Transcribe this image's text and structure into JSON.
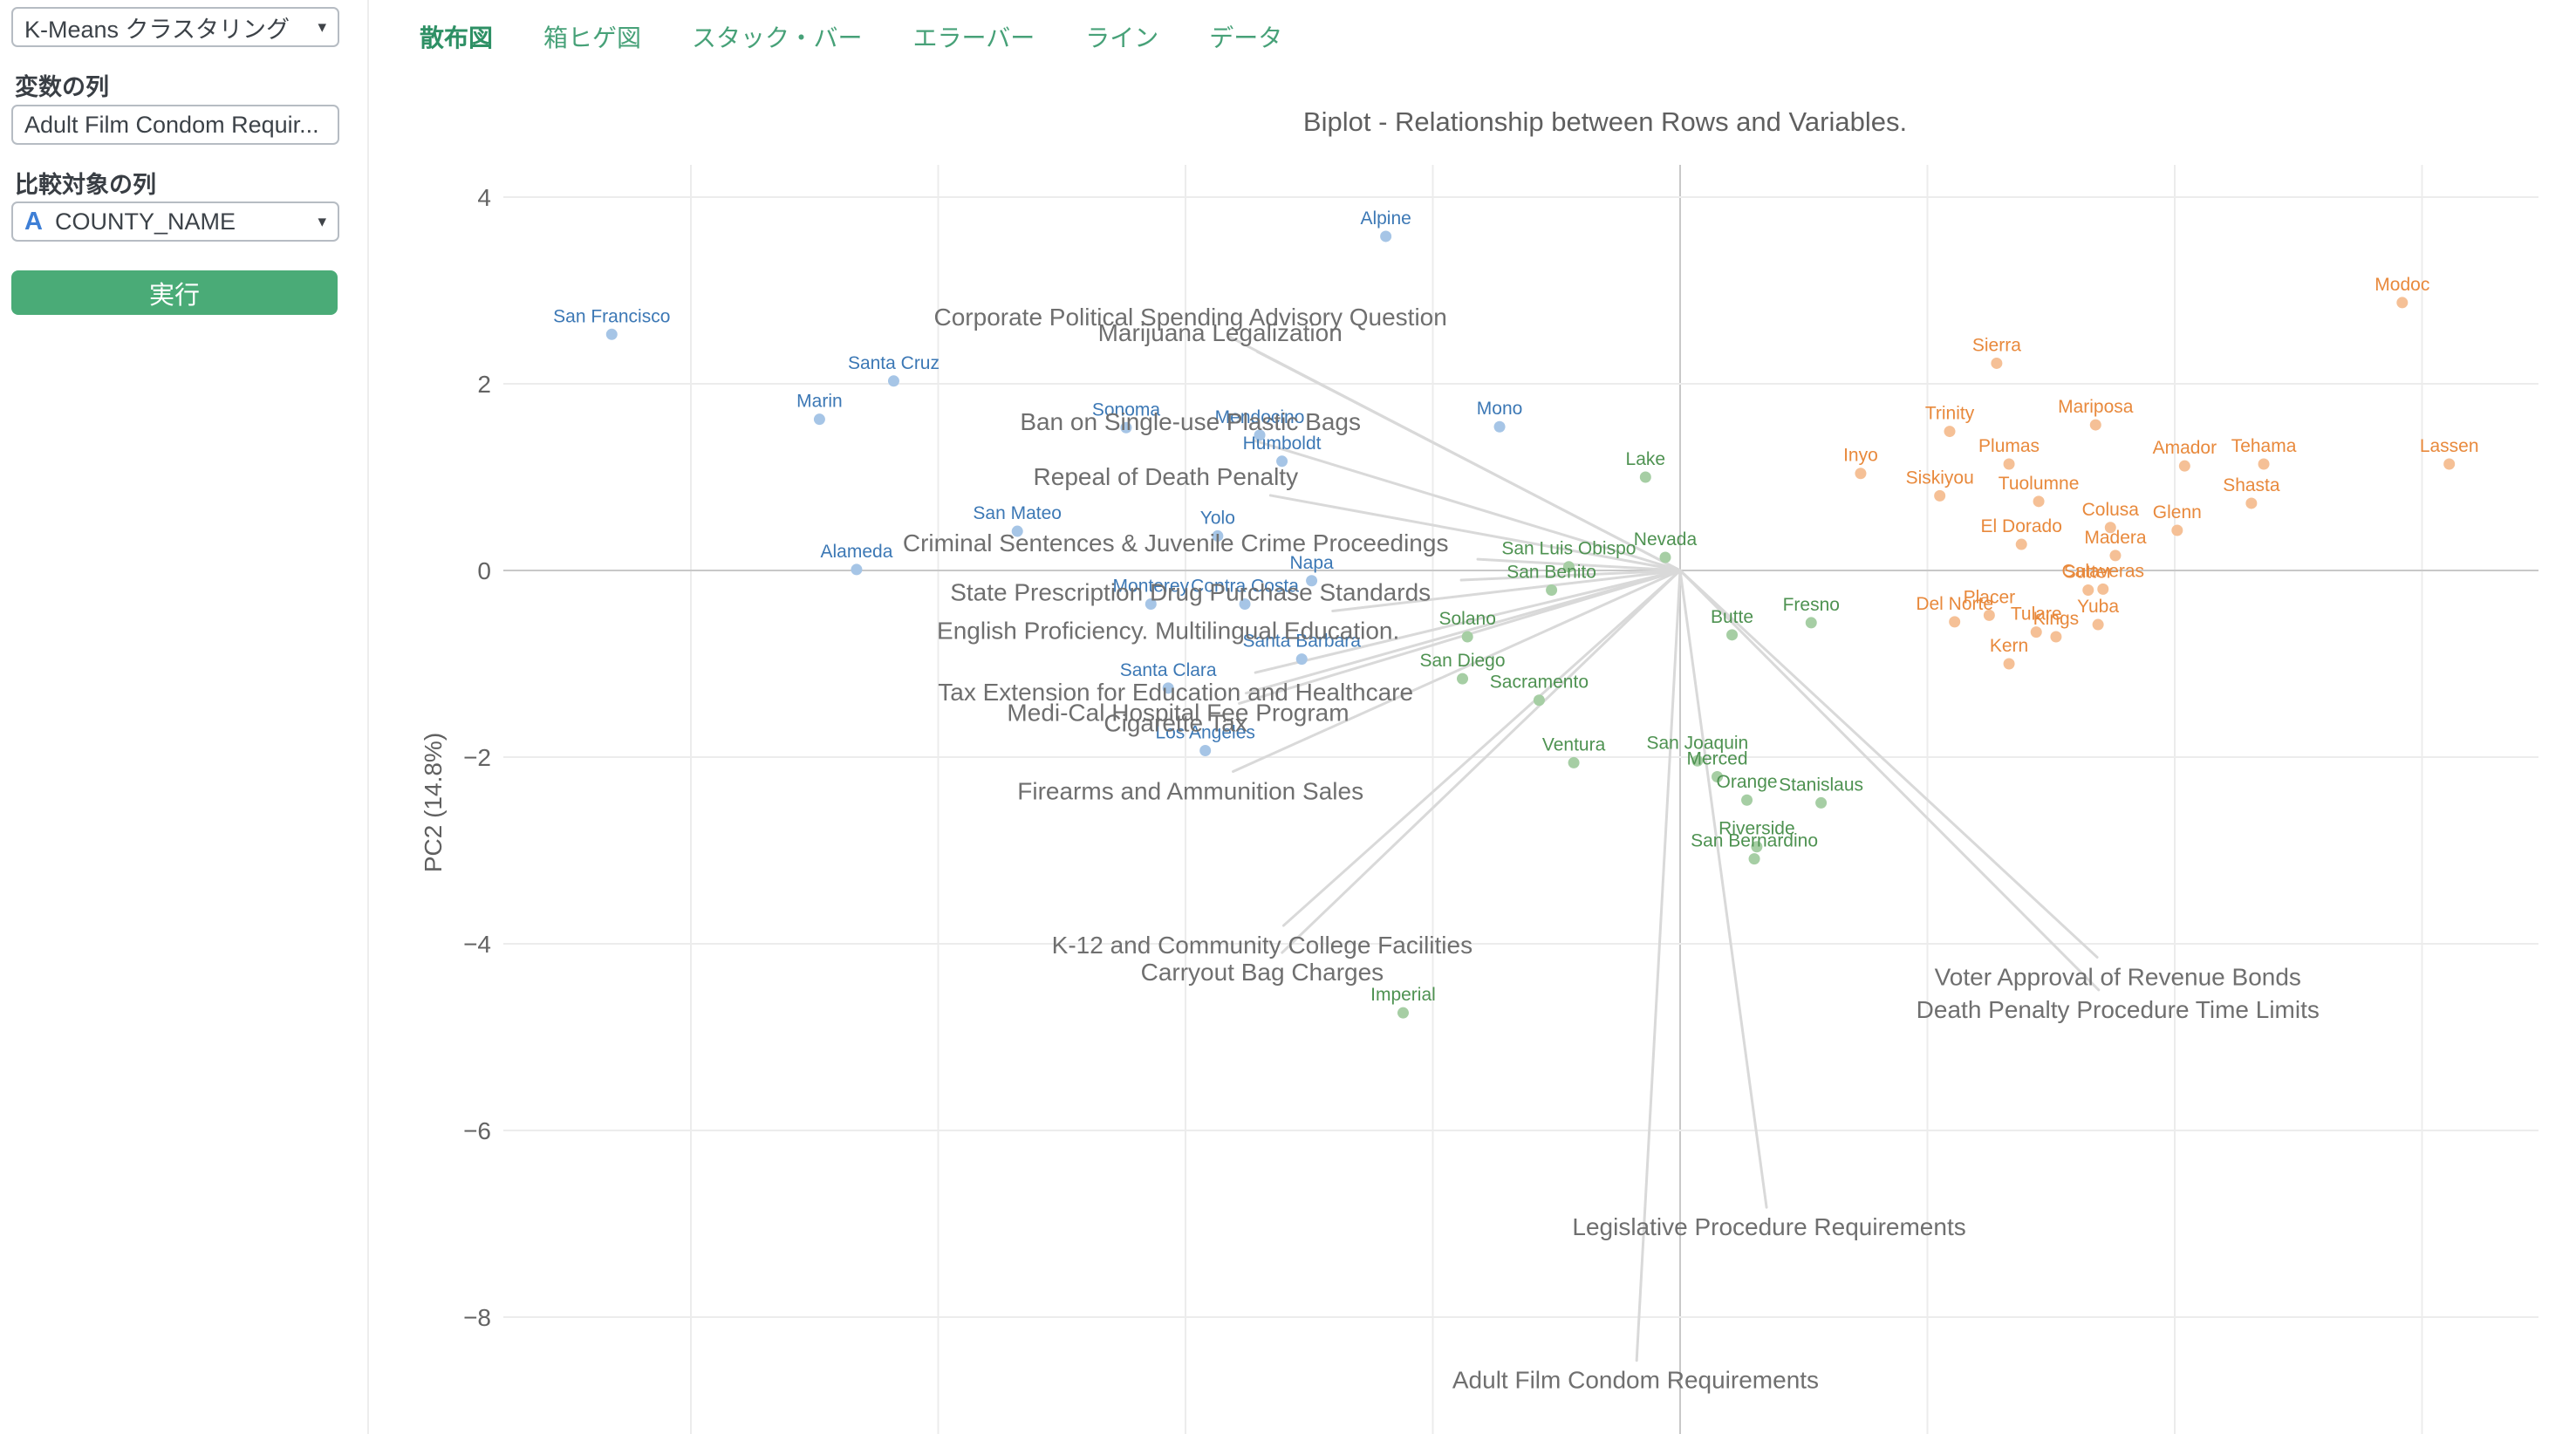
{
  "sidebar": {
    "method_value": "K-Means クラスタリング",
    "variable_label": "変数の列",
    "variable_value": "Adult Film Condom Requir...",
    "target_label": "比較対象の列",
    "target_icon": "A",
    "target_value": "COUNTY_NAME",
    "run_label": "実行"
  },
  "tabs": [
    {
      "label": "散布図",
      "active": true
    },
    {
      "label": "箱ヒゲ図",
      "active": false
    },
    {
      "label": "スタック・バー",
      "active": false
    },
    {
      "label": "エラーバー",
      "active": false
    },
    {
      "label": "ライン",
      "active": false
    },
    {
      "label": "データ",
      "active": false
    }
  ],
  "colors": {
    "accent_green": "#4aab77",
    "tab_green": "#47a178",
    "tab_active_green": "#2e9065",
    "blue_dot": "#a6c5e6",
    "blue_label": "#3c78b5",
    "green_dot": "#a6cea4",
    "green_label": "#4e9251",
    "orange_dot": "#f5c096",
    "orange_label": "#e8893c",
    "variable_label": "#6f6f6f",
    "grid": "#ececec",
    "zero_line": "#c8c8c8",
    "arrow": "#d9d9d9",
    "tick_label": "#636363"
  },
  "chart_data": {
    "type": "scatter",
    "title": "Biplot - Relationship between Rows and Variables.",
    "xlabel": "",
    "ylabel": "PC2 (14.8%)",
    "yticks": [
      4,
      2,
      0,
      -2,
      -4,
      -6,
      -8
    ],
    "x_gridlines": [
      -4,
      -3,
      -2,
      -1,
      0,
      1,
      2,
      3
    ],
    "xlim": [
      -4.76,
      3.47
    ],
    "ylim": [
      -9.25,
      4.35
    ],
    "grid": true,
    "legend": "none",
    "origin": {
      "x": 0,
      "y": 0
    },
    "points": [
      {
        "name": "Alpine",
        "cluster": "blue",
        "x": -1.19,
        "y": 3.58
      },
      {
        "name": "San Francisco",
        "cluster": "blue",
        "x": -4.32,
        "y": 2.53
      },
      {
        "name": "Santa Cruz",
        "cluster": "blue",
        "x": -3.18,
        "y": 2.03
      },
      {
        "name": "Marin",
        "cluster": "blue",
        "x": -3.48,
        "y": 1.62
      },
      {
        "name": "Sonoma",
        "cluster": "blue",
        "x": -2.24,
        "y": 1.53
      },
      {
        "name": "Mendocino",
        "cluster": "blue",
        "x": -1.7,
        "y": 1.45
      },
      {
        "name": "Humboldt",
        "cluster": "blue",
        "x": -1.61,
        "y": 1.17
      },
      {
        "name": "Mono",
        "cluster": "blue",
        "x": -0.73,
        "y": 1.54
      },
      {
        "name": "San Mateo",
        "cluster": "blue",
        "x": -2.68,
        "y": 0.42
      },
      {
        "name": "Yolo",
        "cluster": "blue",
        "x": -1.87,
        "y": 0.37
      },
      {
        "name": "Alameda",
        "cluster": "blue",
        "x": -3.33,
        "y": 0.01
      },
      {
        "name": "Napa",
        "cluster": "blue",
        "x": -1.49,
        "y": -0.11
      },
      {
        "name": "Monterey",
        "cluster": "blue",
        "x": -2.14,
        "y": -0.36
      },
      {
        "name": "Contra Costa",
        "cluster": "blue",
        "x": -1.76,
        "y": -0.36
      },
      {
        "name": "Santa Barbara",
        "cluster": "blue",
        "x": -1.53,
        "y": -0.95
      },
      {
        "name": "Santa Clara",
        "cluster": "blue",
        "x": -2.07,
        "y": -1.26
      },
      {
        "name": "Los Angeles",
        "cluster": "blue",
        "x": -1.92,
        "y": -1.93
      },
      {
        "name": "Lake",
        "cluster": "green",
        "x": -0.14,
        "y": 1.0
      },
      {
        "name": "Nevada",
        "cluster": "green",
        "x": -0.06,
        "y": 0.14
      },
      {
        "name": "San Luis Obispo",
        "cluster": "green",
        "x": -0.45,
        "y": 0.04
      },
      {
        "name": "San Benito",
        "cluster": "green",
        "x": -0.52,
        "y": -0.21
      },
      {
        "name": "Solano",
        "cluster": "green",
        "x": -0.86,
        "y": -0.71
      },
      {
        "name": "San Diego",
        "cluster": "green",
        "x": -0.88,
        "y": -1.16
      },
      {
        "name": "Sacramento",
        "cluster": "green",
        "x": -0.57,
        "y": -1.39
      },
      {
        "name": "Butte",
        "cluster": "green",
        "x": 0.21,
        "y": -0.69
      },
      {
        "name": "Fresno",
        "cluster": "green",
        "x": 0.53,
        "y": -0.56
      },
      {
        "name": "Ventura",
        "cluster": "green",
        "x": -0.43,
        "y": -2.06
      },
      {
        "name": "San Joaquin",
        "cluster": "green",
        "x": 0.07,
        "y": -2.04
      },
      {
        "name": "Merced",
        "cluster": "green",
        "x": 0.15,
        "y": -2.21
      },
      {
        "name": "Orange",
        "cluster": "green",
        "x": 0.27,
        "y": -2.46
      },
      {
        "name": "Stanislaus",
        "cluster": "green",
        "x": 0.57,
        "y": -2.49
      },
      {
        "name": "Riverside",
        "cluster": "green",
        "x": 0.31,
        "y": -2.96
      },
      {
        "name": "San Bernardino",
        "cluster": "green",
        "x": 0.3,
        "y": -3.09
      },
      {
        "name": "Imperial",
        "cluster": "green",
        "x": -1.12,
        "y": -4.74
      },
      {
        "name": "Modoc",
        "cluster": "orange",
        "x": 2.92,
        "y": 2.87
      },
      {
        "name": "Sierra",
        "cluster": "orange",
        "x": 1.28,
        "y": 2.22
      },
      {
        "name": "Mariposa",
        "cluster": "orange",
        "x": 1.68,
        "y": 1.56
      },
      {
        "name": "Trinity",
        "cluster": "orange",
        "x": 1.09,
        "y": 1.49
      },
      {
        "name": "Plumas",
        "cluster": "orange",
        "x": 1.33,
        "y": 1.14
      },
      {
        "name": "Amador",
        "cluster": "orange",
        "x": 2.04,
        "y": 1.12
      },
      {
        "name": "Tehama",
        "cluster": "orange",
        "x": 2.36,
        "y": 1.14
      },
      {
        "name": "Lassen",
        "cluster": "orange",
        "x": 3.11,
        "y": 1.14
      },
      {
        "name": "Siskiyou",
        "cluster": "orange",
        "x": 1.05,
        "y": 0.8
      },
      {
        "name": "Tuolumne",
        "cluster": "orange",
        "x": 1.45,
        "y": 0.74
      },
      {
        "name": "Shasta",
        "cluster": "orange",
        "x": 2.31,
        "y": 0.72
      },
      {
        "name": "Colusa",
        "cluster": "orange",
        "x": 1.74,
        "y": 0.46
      },
      {
        "name": "Glenn",
        "cluster": "orange",
        "x": 2.01,
        "y": 0.43
      },
      {
        "name": "El Dorado",
        "cluster": "orange",
        "x": 1.38,
        "y": 0.28
      },
      {
        "name": "Madera",
        "cluster": "orange",
        "x": 1.76,
        "y": 0.16
      },
      {
        "name": "Sutter",
        "cluster": "orange",
        "x": 1.65,
        "y": -0.21
      },
      {
        "name": "Calaveras",
        "cluster": "orange",
        "x": 1.71,
        "y": -0.2
      },
      {
        "name": "Placer",
        "cluster": "orange",
        "x": 1.25,
        "y": -0.48
      },
      {
        "name": "Del Norte",
        "cluster": "orange",
        "x": 1.11,
        "y": -0.55
      },
      {
        "name": "Yuba",
        "cluster": "orange",
        "x": 1.69,
        "y": -0.58
      },
      {
        "name": "Tulare",
        "cluster": "orange",
        "x": 1.44,
        "y": -0.66
      },
      {
        "name": "Kings",
        "cluster": "orange",
        "x": 1.52,
        "y": -0.71
      },
      {
        "name": "Kern",
        "cluster": "orange",
        "x": 1.33,
        "y": -1.0
      },
      {
        "name": "Inyo",
        "cluster": "orange",
        "x": 0.73,
        "y": 1.04
      }
    ],
    "variables": [
      {
        "name": "Corporate Political Spending Advisory Question",
        "x": -1.98,
        "y": 2.72
      },
      {
        "name": "Marijuana Legalization",
        "x": -1.86,
        "y": 2.55
      },
      {
        "name": "Ban on Single-use Plastic Bags",
        "x": -1.98,
        "y": 1.6
      },
      {
        "name": "Repeal of Death Penalty",
        "x": -2.08,
        "y": 1.01
      },
      {
        "name": "Criminal Sentences & Juvenile Crime Proceedings",
        "x": -2.04,
        "y": 0.3
      },
      {
        "name": "State Prescription Drug Purchase Standards",
        "x": -1.98,
        "y": -0.23
      },
      {
        "name": "English Proficiency. Multilingual Education.",
        "x": -2.07,
        "y": -0.64
      },
      {
        "name": "Tax Extension for Education and Healthcare",
        "x": -2.04,
        "y": -1.3
      },
      {
        "name": "Medi-Cal Hospital Fee Program",
        "x": -2.03,
        "y": -1.52
      },
      {
        "name": "Cigarette Tax",
        "x": -2.04,
        "y": -1.63
      },
      {
        "name": "Firearms and Ammunition Sales",
        "x": -1.98,
        "y": -2.36
      },
      {
        "name": "K-12 and Community College Facilities",
        "x": -1.69,
        "y": -4.01
      },
      {
        "name": "Carryout Bag Charges",
        "x": -1.69,
        "y": -4.3
      },
      {
        "name": "Voter Approval of Revenue Bonds",
        "x": 1.77,
        "y": -4.35
      },
      {
        "name": "Death Penalty Procedure Time Limits",
        "x": 1.77,
        "y": -4.7
      },
      {
        "name": "Legislative Procedure Requirements",
        "x": 0.36,
        "y": -7.03
      },
      {
        "name": "Adult Film Condom Requirements",
        "x": -0.18,
        "y": -8.67
      }
    ]
  }
}
